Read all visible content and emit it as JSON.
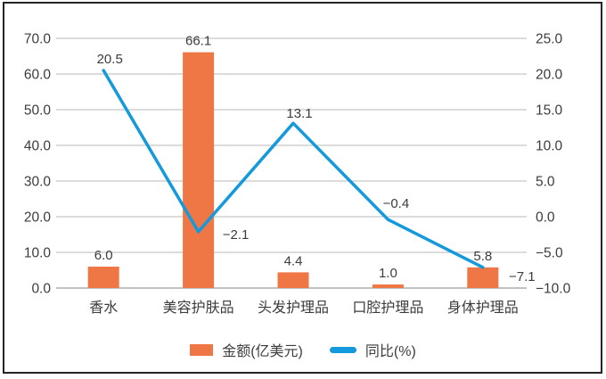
{
  "chart_data": {
    "type": "bar",
    "categories": [
      "香水",
      "美容护肤品",
      "头发护理品",
      "口腔护理品",
      "身体护理品"
    ],
    "series": [
      {
        "name": "金额(亿美元)",
        "type": "bar",
        "axis": "left",
        "values": [
          6.0,
          66.1,
          4.4,
          1.0,
          5.8
        ],
        "labels": [
          "6.0",
          "66.1",
          "4.4",
          "1.0",
          "5.8"
        ],
        "color": "#ee7745"
      },
      {
        "name": "同比(%)",
        "type": "line",
        "axis": "right",
        "values": [
          20.5,
          -2.1,
          13.1,
          -0.4,
          -7.1
        ],
        "labels": [
          "20.5",
          "−2.1",
          "13.1",
          "−0.4",
          "−7.1"
        ],
        "label_offsets": [
          [
            7,
            -8
          ],
          [
            42,
            8
          ],
          [
            7,
            -6
          ],
          [
            9,
            -13
          ],
          [
            44,
            15
          ]
        ],
        "color": "#1499dc"
      }
    ],
    "left_axis": {
      "min": 0,
      "max": 70,
      "step": 10,
      "ticks": [
        "0.0",
        "10.0",
        "20.0",
        "30.0",
        "40.0",
        "50.0",
        "60.0",
        "70.0"
      ]
    },
    "right_axis": {
      "min": -10,
      "max": 25,
      "step": 5,
      "ticks": [
        "−10.0",
        "−5.0",
        "0.0",
        "5.0",
        "10.0",
        "15.0",
        "20.0",
        "25.0"
      ]
    },
    "grid": true,
    "gridline_color": "#c7c7c7",
    "axis_line_color": "#9d9d9d",
    "text_color": "#3c3c3c",
    "legend_position": "bottom",
    "title": ""
  },
  "legend": {
    "items": [
      {
        "label": "金额(亿美元)",
        "color": "#ee7745",
        "marker": "bar"
      },
      {
        "label": "同比(%)",
        "color": "#1499dc",
        "marker": "line"
      }
    ]
  }
}
